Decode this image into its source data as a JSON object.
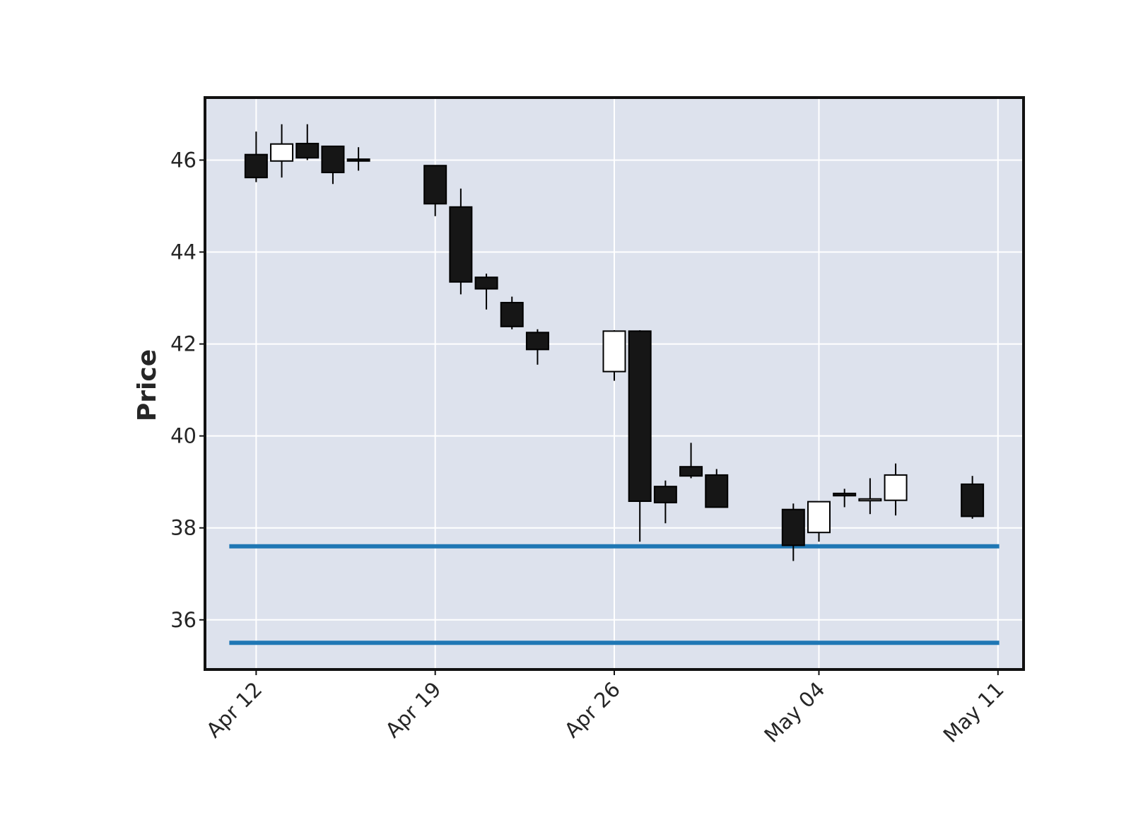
{
  "chart_data": {
    "type": "candlestick",
    "title": "",
    "xlabel": "",
    "ylabel": "Price",
    "ylim": [
      34.92,
      47.36
    ],
    "yticks": [
      36,
      38,
      40,
      42,
      44,
      46
    ],
    "xticks": [
      {
        "date": "2021-04-12",
        "label": "Apr 12"
      },
      {
        "date": "2021-04-19",
        "label": "Apr 19"
      },
      {
        "date": "2021-04-26",
        "label": "Apr 26"
      },
      {
        "date": "2021-05-04",
        "label": "May 04"
      },
      {
        "date": "2021-05-11",
        "label": "May 11"
      }
    ],
    "grid": true,
    "candles": [
      {
        "date": "2021-04-12",
        "open": 46.12,
        "high": 46.62,
        "low": 45.52,
        "close": 45.62
      },
      {
        "date": "2021-04-13",
        "open": 45.98,
        "high": 46.78,
        "low": 45.62,
        "close": 46.35
      },
      {
        "date": "2021-04-14",
        "open": 46.36,
        "high": 46.78,
        "low": 46.0,
        "close": 46.05
      },
      {
        "date": "2021-04-15",
        "open": 46.3,
        "high": 46.3,
        "low": 45.48,
        "close": 45.73
      },
      {
        "date": "2021-04-16",
        "open": 46.02,
        "high": 46.28,
        "low": 45.77,
        "close": 45.98
      },
      {
        "date": "2021-04-19",
        "open": 45.88,
        "high": 45.88,
        "low": 44.78,
        "close": 45.05
      },
      {
        "date": "2021-04-20",
        "open": 44.98,
        "high": 45.38,
        "low": 43.08,
        "close": 43.35
      },
      {
        "date": "2021-04-21",
        "open": 43.45,
        "high": 43.53,
        "low": 42.75,
        "close": 43.2
      },
      {
        "date": "2021-04-22",
        "open": 42.9,
        "high": 43.03,
        "low": 42.32,
        "close": 42.38
      },
      {
        "date": "2021-04-23",
        "open": 42.25,
        "high": 42.32,
        "low": 41.55,
        "close": 41.88
      },
      {
        "date": "2021-04-26",
        "open": 41.4,
        "high": 42.3,
        "low": 41.2,
        "close": 42.28
      },
      {
        "date": "2021-04-27",
        "open": 42.28,
        "high": 42.3,
        "low": 37.7,
        "close": 38.58
      },
      {
        "date": "2021-04-28",
        "open": 38.9,
        "high": 39.03,
        "low": 38.1,
        "close": 38.55
      },
      {
        "date": "2021-04-29",
        "open": 39.33,
        "high": 39.85,
        "low": 39.08,
        "close": 39.13
      },
      {
        "date": "2021-04-30",
        "open": 39.15,
        "high": 39.28,
        "low": 38.45,
        "close": 38.45
      },
      {
        "date": "2021-05-03",
        "open": 38.4,
        "high": 38.53,
        "low": 37.28,
        "close": 37.62
      },
      {
        "date": "2021-05-04",
        "open": 37.9,
        "high": 38.58,
        "low": 37.7,
        "close": 38.57
      },
      {
        "date": "2021-05-05",
        "open": 38.75,
        "high": 38.85,
        "low": 38.45,
        "close": 38.7
      },
      {
        "date": "2021-05-06",
        "open": 38.62,
        "high": 39.08,
        "low": 38.3,
        "close": 38.63
      },
      {
        "date": "2021-05-07",
        "open": 38.6,
        "high": 39.4,
        "low": 38.27,
        "close": 39.15
      },
      {
        "date": "2021-05-10",
        "open": 38.95,
        "high": 39.13,
        "low": 38.2,
        "close": 38.25
      }
    ],
    "hlines": [
      {
        "y": 37.6,
        "color": "#1f77b4"
      },
      {
        "y": 35.5,
        "color": "#1f77b4"
      }
    ],
    "colors": {
      "plot_background": "#dde2ed",
      "gridline": "#ffffff",
      "down_candle": "#161616",
      "up_candle": "#ffffff",
      "candle_edge": "#000000",
      "hline": "#1f77b4"
    }
  }
}
